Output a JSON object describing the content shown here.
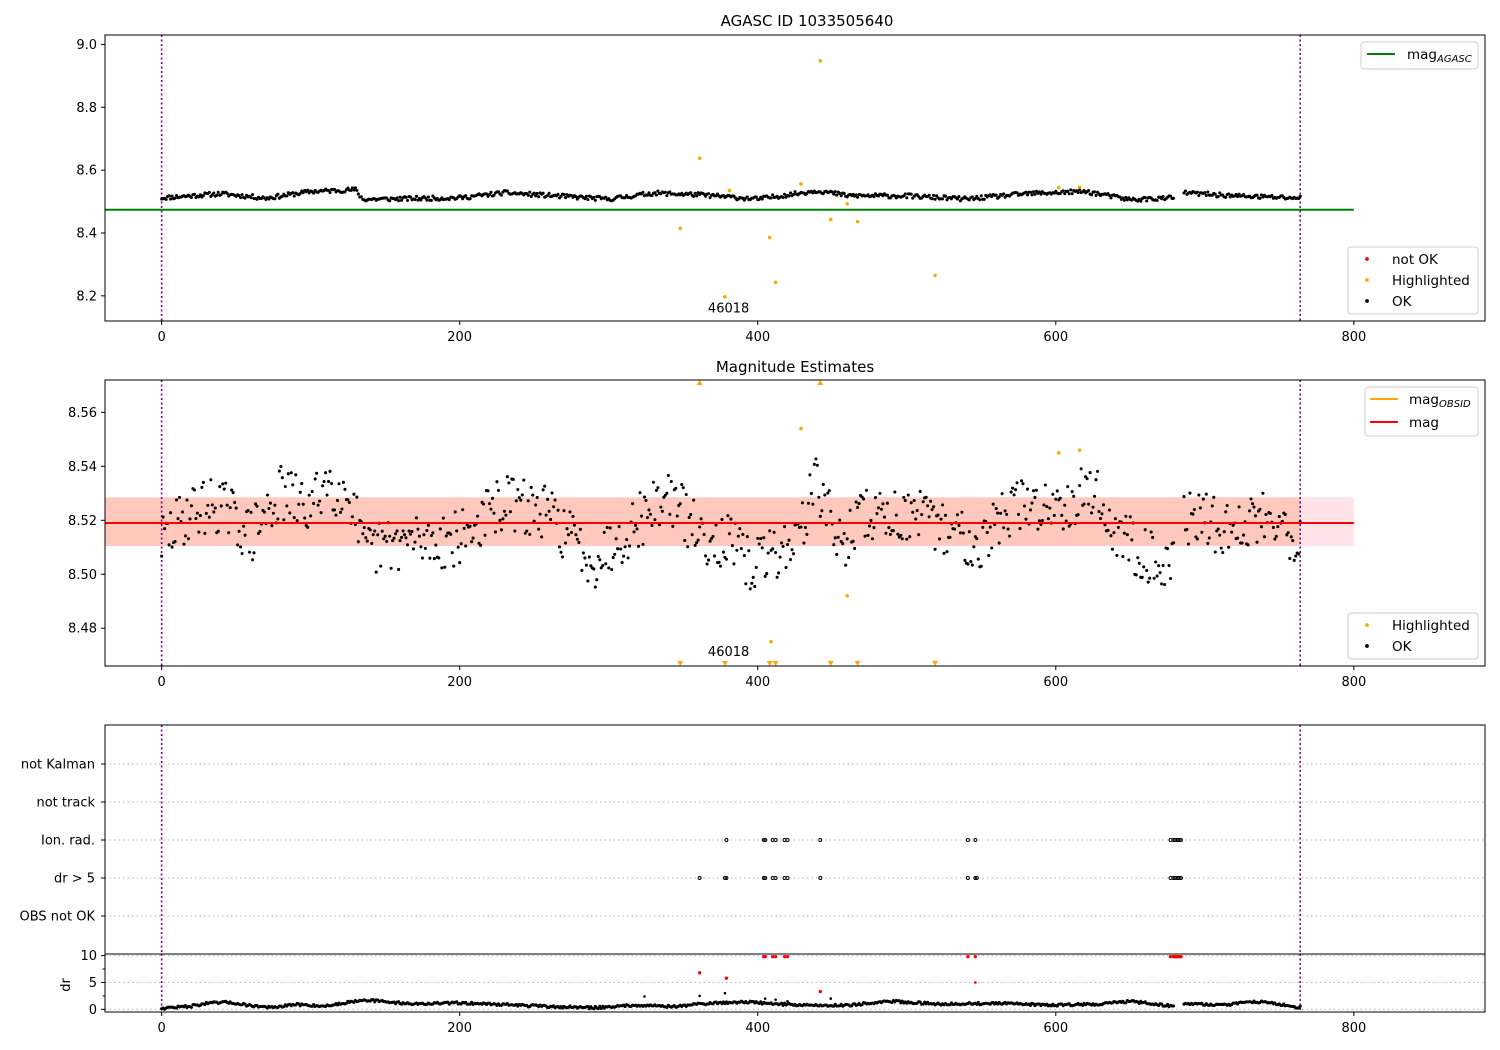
{
  "chart_data": [
    {
      "type": "scatter",
      "title": "AGASC ID 1033505640",
      "xlim": [
        -38,
        888
      ],
      "ylim": [
        8.12,
        9.03
      ],
      "x_ticks": [
        0,
        200,
        400,
        600,
        800
      ],
      "y_ticks": [
        8.2,
        8.4,
        8.6,
        8.8,
        9.0
      ],
      "y_tick_labels": [
        "8.2",
        "8.4",
        "8.6",
        "8.8",
        "9.0"
      ],
      "vlines": [
        0,
        764
      ],
      "mag_agasc": {
        "value": 8.474,
        "x": [
          -38,
          800
        ]
      },
      "annotation": {
        "text": "46018",
        "x": 380,
        "y": 8.15
      },
      "legend_lines": {
        "placement": "upper right",
        "entries": [
          {
            "label": "mag",
            "subscript": "AGASC",
            "color": "#008000"
          }
        ]
      },
      "legend_points": {
        "placement": "lower right",
        "entries": [
          {
            "label": "not OK",
            "color": "#ff0000"
          },
          {
            "label": "Highlighted",
            "color": "#ffa500"
          },
          {
            "label": "OK",
            "color": "#000000"
          }
        ]
      },
      "ok_series": {
        "x_range": [
          0,
          764
        ],
        "gaps": [
          [
            679,
            686
          ]
        ],
        "base": 8.52,
        "points": [
          [
            0,
            8.512
          ],
          [
            40,
            8.525
          ],
          [
            70,
            8.511
          ],
          [
            100,
            8.532
          ],
          [
            130,
            8.538
          ],
          [
            135,
            8.507
          ],
          [
            200,
            8.512
          ],
          [
            230,
            8.528
          ],
          [
            300,
            8.508
          ],
          [
            330,
            8.527
          ],
          [
            360,
            8.522
          ],
          [
            400,
            8.508
          ],
          [
            430,
            8.528
          ],
          [
            440,
            8.535
          ],
          [
            460,
            8.519
          ],
          [
            500,
            8.518
          ],
          [
            540,
            8.508
          ],
          [
            580,
            8.525
          ],
          [
            620,
            8.532
          ],
          [
            650,
            8.506
          ],
          [
            679,
            8.512
          ],
          [
            686,
            8.528
          ],
          [
            720,
            8.518
          ],
          [
            760,
            8.512
          ]
        ]
      },
      "highlighted_series": {
        "x": [
          348,
          361,
          378,
          381,
          408,
          412,
          429,
          442,
          449,
          460,
          467,
          519,
          602,
          616
        ],
        "y": [
          8.415,
          8.638,
          8.197,
          8.535,
          8.386,
          8.243,
          8.556,
          8.948,
          8.443,
          8.493,
          8.436,
          8.265,
          8.545,
          8.546
        ]
      }
    },
    {
      "type": "scatter",
      "title": "Magnitude Estimates",
      "xlim": [
        -38,
        888
      ],
      "ylim": [
        8.466,
        8.572
      ],
      "x_ticks": [
        0,
        200,
        400,
        600,
        800
      ],
      "y_ticks": [
        8.48,
        8.5,
        8.52,
        8.54,
        8.56
      ],
      "y_tick_labels": [
        "8.48",
        "8.50",
        "8.52",
        "8.54",
        "8.56"
      ],
      "vlines": [
        0,
        764
      ],
      "mag_line": {
        "value": 8.519,
        "x": [
          -38,
          800
        ]
      },
      "mag_band": {
        "low": 8.5105,
        "high": 8.5285
      },
      "mag_obsid_band": {
        "x": [
          -38,
          764
        ],
        "low": 8.5105,
        "high": 8.5285
      },
      "annotation": {
        "text": "46018",
        "x": 380,
        "y": 8.469
      },
      "legend_lines": {
        "placement": "upper right",
        "entries": [
          {
            "label": "mag",
            "subscript": "OBSID",
            "color": "#ffa500"
          },
          {
            "label": "mag",
            "subscript": "",
            "color": "#ff0000"
          }
        ]
      },
      "legend_points": {
        "placement": "lower right",
        "entries": [
          {
            "label": "Highlighted",
            "color": "#ffa500"
          },
          {
            "label": "OK",
            "color": "#000000"
          }
        ]
      },
      "ok_series": {
        "x_range": [
          0,
          764
        ],
        "gaps": [
          [
            679,
            686
          ]
        ],
        "base": 8.519,
        "points": [
          [
            0,
            8.512
          ],
          [
            20,
            8.524
          ],
          [
            40,
            8.526
          ],
          [
            60,
            8.514
          ],
          [
            80,
            8.53
          ],
          [
            100,
            8.524
          ],
          [
            110,
            8.535
          ],
          [
            128,
            8.528
          ],
          [
            135,
            8.508
          ],
          [
            160,
            8.512
          ],
          [
            200,
            8.513
          ],
          [
            230,
            8.527
          ],
          [
            260,
            8.522
          ],
          [
            290,
            8.505
          ],
          [
            320,
            8.52
          ],
          [
            340,
            8.53
          ],
          [
            360,
            8.515
          ],
          [
            380,
            8.512
          ],
          [
            395,
            8.503
          ],
          [
            410,
            8.508
          ],
          [
            425,
            8.512
          ],
          [
            440,
            8.535
          ],
          [
            455,
            8.51
          ],
          [
            470,
            8.522
          ],
          [
            500,
            8.522
          ],
          [
            530,
            8.516
          ],
          [
            550,
            8.512
          ],
          [
            570,
            8.525
          ],
          [
            590,
            8.525
          ],
          [
            610,
            8.528
          ],
          [
            625,
            8.532
          ],
          [
            640,
            8.515
          ],
          [
            660,
            8.508
          ],
          [
            679,
            8.502
          ],
          [
            686,
            8.522
          ],
          [
            720,
            8.516
          ],
          [
            745,
            8.524
          ],
          [
            760,
            8.512
          ]
        ]
      },
      "highlighted_series": {
        "x": [
          460,
          409,
          429,
          602,
          616
        ],
        "y": [
          8.492,
          8.475,
          8.554,
          8.545,
          8.546
        ]
      },
      "clipped_up_x": [
        361,
        442
      ],
      "clipped_down_x": [
        348,
        378,
        408,
        412,
        449,
        467,
        519
      ]
    },
    {
      "type": "scatter",
      "title": "",
      "xlim": [
        -38,
        888
      ],
      "categories": [
        "OBS not OK",
        "dr > 5",
        "Ion. rad.",
        "not track",
        "not Kalman"
      ],
      "vlines": [
        0,
        764
      ],
      "flags": {
        "dr > 5": [
          361,
          378,
          379,
          404,
          405,
          410,
          412,
          418,
          420,
          442,
          541,
          546,
          547,
          677,
          679,
          680,
          681,
          682,
          683,
          684
        ],
        "Ion. rad.": [
          379,
          404,
          405,
          410,
          412,
          418,
          420,
          442,
          541,
          546,
          677,
          679,
          680,
          681,
          682,
          683,
          684
        ]
      }
    },
    {
      "type": "scatter",
      "title": "",
      "xlim": [
        -38,
        888
      ],
      "ylim": [
        -0.5,
        10.3
      ],
      "ylabel": "dr",
      "x_ticks": [
        0,
        200,
        400,
        600,
        800
      ],
      "y_ticks": [
        0,
        5,
        10
      ],
      "y_tick_labels": [
        "0",
        "5",
        "10"
      ],
      "vlines": [
        0,
        764
      ],
      "ok_series": {
        "x_range": [
          0,
          764
        ],
        "gaps": [
          [
            679,
            686
          ]
        ],
        "points": [
          [
            0,
            0.2
          ],
          [
            20,
            0.6
          ],
          [
            30,
            1.1
          ],
          [
            45,
            1.3
          ],
          [
            60,
            0.7
          ],
          [
            75,
            0.3
          ],
          [
            90,
            0.9
          ],
          [
            110,
            0.6
          ],
          [
            125,
            1.3
          ],
          [
            135,
            1.8
          ],
          [
            150,
            1.4
          ],
          [
            170,
            1.0
          ],
          [
            200,
            1.2
          ],
          [
            230,
            0.9
          ],
          [
            260,
            0.5
          ],
          [
            290,
            0.3
          ],
          [
            320,
            0.8
          ],
          [
            345,
            0.5
          ],
          [
            360,
            1.0
          ],
          [
            390,
            1.4
          ],
          [
            420,
            0.9
          ],
          [
            445,
            0.7
          ],
          [
            460,
            0.8
          ],
          [
            480,
            1.2
          ],
          [
            490,
            1.5
          ],
          [
            520,
            1.0
          ],
          [
            560,
            1.1
          ],
          [
            600,
            0.8
          ],
          [
            630,
            1.0
          ],
          [
            650,
            1.5
          ],
          [
            679,
            0.6
          ],
          [
            686,
            1.1
          ],
          [
            710,
            0.8
          ],
          [
            740,
            1.5
          ],
          [
            760,
            0.4
          ]
        ]
      },
      "extra_ok_points": {
        "x": [
          324,
          361,
          378,
          405,
          412,
          420,
          449
        ],
        "y": [
          2.4,
          2.5,
          3.0,
          2.0,
          1.8,
          1.5,
          2.0
        ]
      },
      "not_ok_series": {
        "x": [
          361,
          379,
          404,
          405,
          410,
          412,
          418,
          420,
          442,
          541,
          546,
          677,
          679,
          680,
          681,
          682,
          683,
          684
        ],
        "y": [
          6.8,
          5.8,
          9.8,
          9.8,
          9.8,
          9.8,
          9.8,
          9.8,
          3.3,
          9.8,
          9.8,
          9.8,
          9.8,
          9.8,
          9.8,
          9.8,
          9.8,
          9.8
        ]
      },
      "not_ok_extra": {
        "x": [
          546
        ],
        "y": [
          5.0
        ]
      }
    }
  ],
  "colors": {
    "ok": "#000000",
    "highlighted": "#ffa500",
    "not_ok": "#ff0000",
    "agasc_line": "#008000",
    "mag_line": "#ff0000",
    "band_red": "#ffc0cb",
    "band_orange": "#ffa07a",
    "vline": "#800080",
    "grid": "#b0b0b0"
  }
}
